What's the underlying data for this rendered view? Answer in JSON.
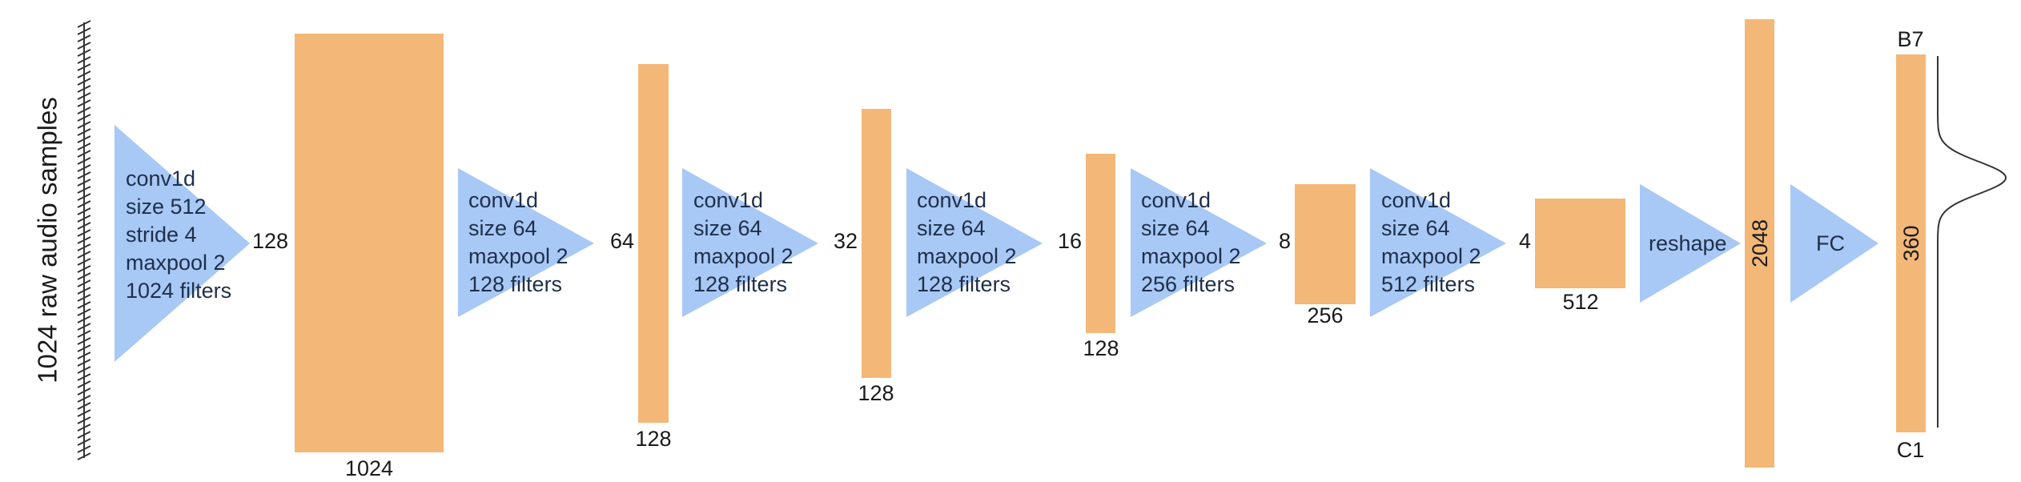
{
  "input_label": "1024 raw audio samples",
  "layers": [
    {
      "lines": [
        "conv1d",
        "size 512",
        "stride 4",
        "maxpool 2",
        "1024 filters"
      ],
      "length": "128",
      "filters": "1024"
    },
    {
      "lines": [
        "conv1d",
        "size 64",
        "maxpool 2",
        "128 filters"
      ],
      "length": "64",
      "filters": "128"
    },
    {
      "lines": [
        "conv1d",
        "size 64",
        "maxpool 2",
        "128 filters"
      ],
      "length": "32",
      "filters": "128"
    },
    {
      "lines": [
        "conv1d",
        "size 64",
        "maxpool 2",
        "128 filters"
      ],
      "length": "16",
      "filters": "128"
    },
    {
      "lines": [
        "conv1d",
        "size 64",
        "maxpool 2",
        "256 filters"
      ],
      "length": "8",
      "filters": "256"
    },
    {
      "lines": [
        "conv1d",
        "size 64",
        "maxpool 2",
        "512 filters"
      ],
      "length": "4",
      "filters": "512"
    }
  ],
  "reshape": {
    "label": "reshape",
    "size": "2048"
  },
  "fc": {
    "label": "FC",
    "size": "360"
  },
  "output": {
    "top": "B7",
    "bottom": "C1"
  },
  "colors": {
    "operation": "#a8c8f5",
    "feature_map": "#f3b877"
  }
}
